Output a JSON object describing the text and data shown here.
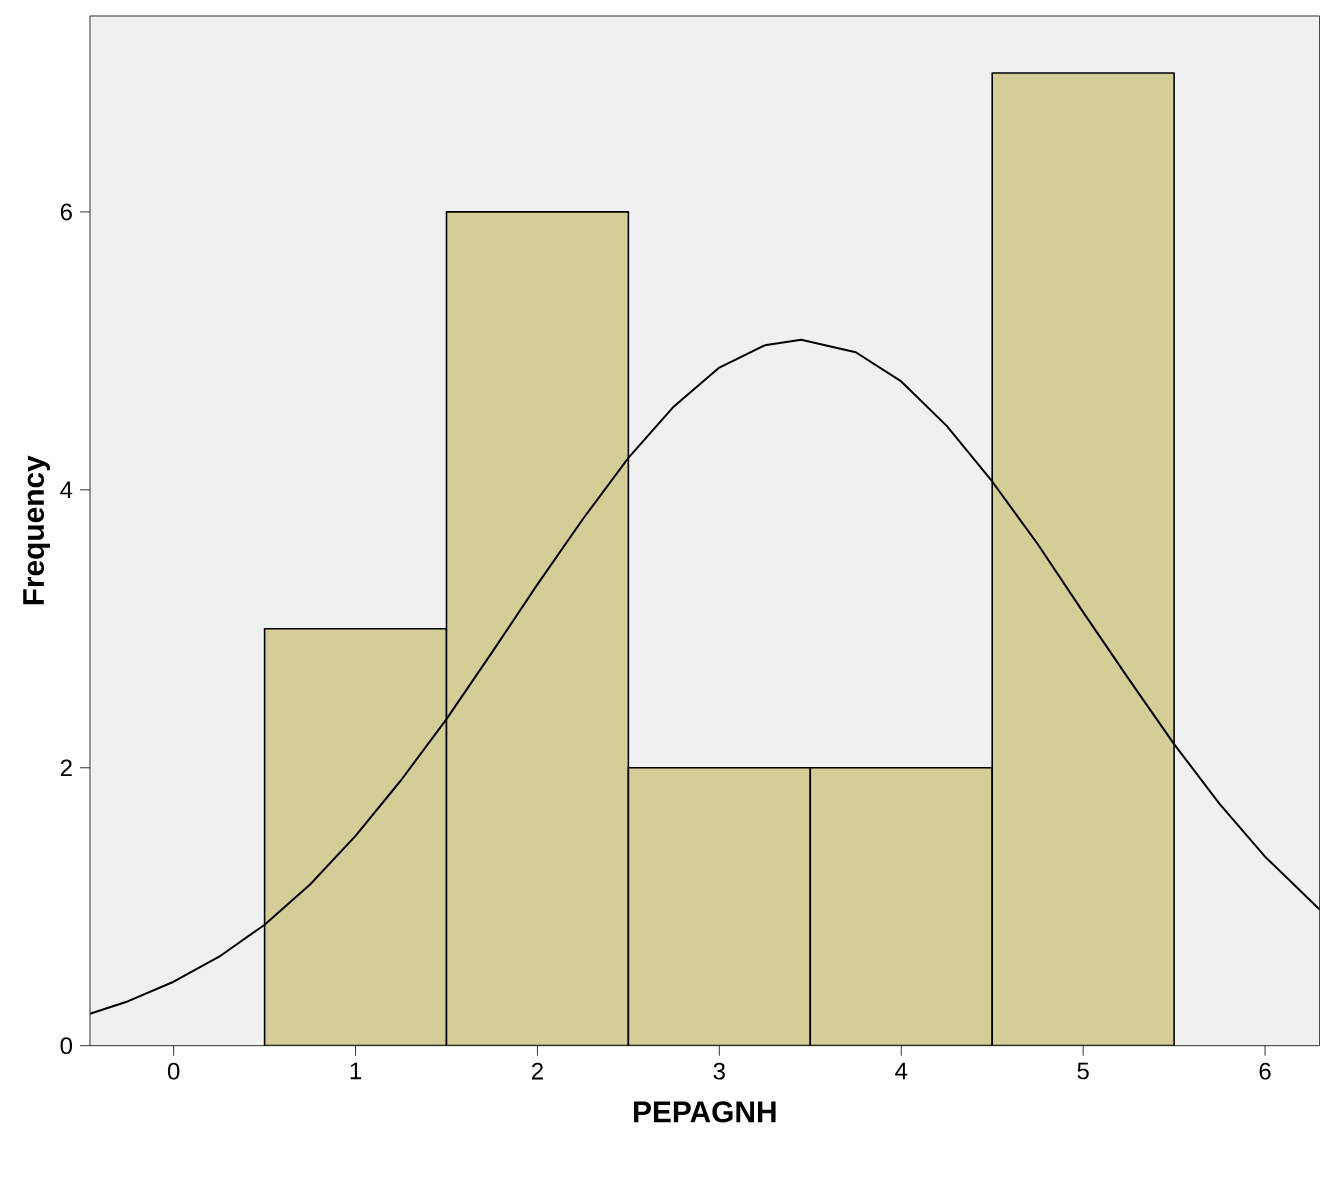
{
  "chart_data": {
    "type": "histogram",
    "xlabel": "PEPAGNH",
    "ylabel": "Frequency",
    "bins": [
      0.5,
      1.5,
      2.5,
      3.5,
      4.5,
      5.5
    ],
    "values": [
      3,
      6,
      2,
      2,
      7
    ],
    "color": "#d3ce97",
    "xlim": [
      -0.46,
      6.3
    ],
    "ylim": [
      0,
      7.41
    ],
    "xticks": [
      0,
      1,
      2,
      3,
      4,
      5,
      6
    ],
    "yticks": [
      0,
      2,
      4,
      6
    ],
    "grid": false,
    "marker": "none",
    "line_style": "solid",
    "series": [
      {
        "type": "line",
        "color": "#000000",
        "x": [
          -0.46,
          -0.25,
          0,
          0.25,
          0.5,
          0.75,
          1,
          1.25,
          1.5,
          1.75,
          2,
          2.25,
          2.5,
          2.75,
          3,
          3.25,
          3.45,
          3.75,
          4,
          4.25,
          4.5,
          4.75,
          5,
          5.25,
          5.5,
          5.75,
          6,
          6.3
        ],
        "values": [
          0.23,
          0.32,
          0.46,
          0.64,
          0.87,
          1.16,
          1.51,
          1.91,
          2.35,
          2.83,
          3.32,
          3.79,
          4.23,
          4.6,
          4.88,
          5.04,
          5.08,
          4.99,
          4.78,
          4.46,
          4.06,
          3.61,
          3.12,
          2.64,
          2.17,
          1.74,
          1.36,
          0.98
        ]
      }
    ]
  }
}
